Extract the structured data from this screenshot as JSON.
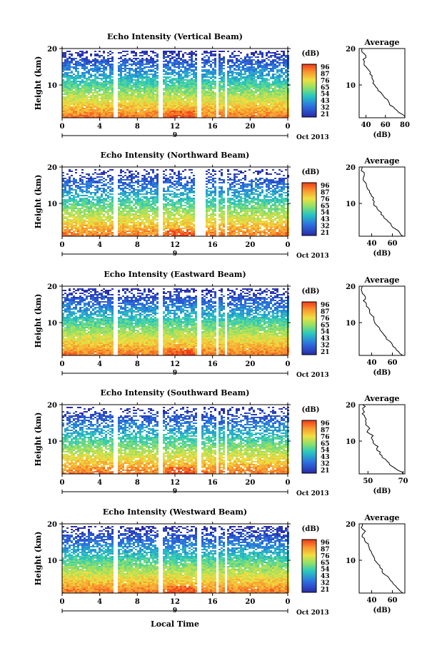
{
  "figure": {
    "xlabel": "Local Time",
    "month_label": "Oct 2013",
    "date_label": "9",
    "ylabel": "Height (km)",
    "colorbar_unit": "(dB)",
    "colorbar_ticks": [
      "96",
      "87",
      "76",
      "65",
      "54",
      "43",
      "32",
      "21"
    ],
    "avg_title": "Average",
    "avg_xlabel": "(dB)",
    "x_ticks": [
      "0",
      "4",
      "8",
      "12",
      "16",
      "20",
      "0"
    ],
    "y_ticks": [
      "20",
      "10"
    ],
    "colors": {
      "low": "#2a2aa8",
      "mid": "#28c8c0",
      "high": "#f03818"
    }
  },
  "chart_data": [
    {
      "type": "heatmap",
      "title": "Echo Intensity (Vertical Beam)",
      "x_range_hours": [
        0,
        24
      ],
      "y_range_km": [
        1,
        20
      ],
      "color_range_db": [
        21,
        96
      ],
      "gaps_hours": [
        [
          5.3,
          5.8
        ],
        [
          10.2,
          10.5
        ],
        [
          14.3,
          14.7
        ],
        [
          16.2,
          16.6
        ],
        [
          17.2,
          17.5
        ]
      ],
      "profile": {
        "title": "Average",
        "xlabel": "(dB)",
        "x_ticks": [
          40,
          60,
          80
        ],
        "xlim": [
          33,
          80
        ],
        "heights_km": [
          1,
          2,
          3,
          4,
          5,
          6,
          7,
          8,
          9,
          10,
          11,
          12,
          13,
          14,
          15,
          16,
          17,
          18,
          19,
          20
        ],
        "values_db": [
          80,
          77,
          72,
          68,
          64,
          62,
          58,
          55,
          52,
          49,
          48,
          46,
          44,
          43,
          40,
          38,
          37,
          40,
          36,
          36
        ]
      }
    },
    {
      "type": "heatmap",
      "title": "Echo Intensity (Northward Beam)",
      "x_range_hours": [
        0,
        24
      ],
      "y_range_km": [
        1,
        20
      ],
      "color_range_db": [
        21,
        96
      ],
      "gaps_hours": [
        [
          5.3,
          5.8
        ],
        [
          10.2,
          10.5
        ],
        [
          13.9,
          15.1
        ],
        [
          16.2,
          16.6
        ],
        [
          17.2,
          17.5
        ]
      ],
      "profile": {
        "title": "Average",
        "xlabel": "(dB)",
        "x_ticks": [
          40,
          60
        ],
        "xlim": [
          28,
          72
        ],
        "heights_km": [
          1,
          2,
          3,
          4,
          5,
          6,
          7,
          8,
          9,
          10,
          11,
          12,
          13,
          14,
          15,
          16,
          17,
          18,
          19,
          20
        ],
        "values_db": [
          70,
          67,
          63,
          59,
          56,
          52,
          49,
          47,
          45,
          42,
          41,
          40,
          38,
          36,
          35,
          33,
          32,
          33,
          30,
          31
        ]
      }
    },
    {
      "type": "heatmap",
      "title": "Echo Intensity (Eastward Beam)",
      "x_range_hours": [
        0,
        24
      ],
      "y_range_km": [
        1,
        20
      ],
      "color_range_db": [
        21,
        96
      ],
      "gaps_hours": [
        [
          5.3,
          5.8
        ],
        [
          10.2,
          10.5
        ],
        [
          14.3,
          14.7
        ],
        [
          16.2,
          16.6
        ],
        [
          17.2,
          17.5
        ]
      ],
      "profile": {
        "title": "Average",
        "xlabel": "(dB)",
        "x_ticks": [
          40,
          60
        ],
        "xlim": [
          28,
          72
        ],
        "heights_km": [
          1,
          2,
          3,
          4,
          5,
          6,
          7,
          8,
          9,
          10,
          11,
          12,
          13,
          14,
          15,
          16,
          17,
          18,
          19,
          20
        ],
        "values_db": [
          70,
          66,
          63,
          60,
          57,
          54,
          51,
          48,
          46,
          43,
          42,
          40,
          38,
          37,
          35,
          32,
          34,
          31,
          30,
          31
        ]
      }
    },
    {
      "type": "heatmap",
      "title": "Echo Intensity (Southward Beam)",
      "x_range_hours": [
        0,
        24
      ],
      "y_range_km": [
        1,
        20
      ],
      "color_range_db": [
        21,
        96
      ],
      "gaps_hours": [
        [
          5.3,
          5.8
        ],
        [
          10.2,
          10.5
        ],
        [
          14.3,
          14.7
        ],
        [
          16.2,
          16.6
        ],
        [
          17.2,
          17.5
        ]
      ],
      "profile": {
        "title": "Average",
        "xlabel": "(dB)",
        "x_ticks": [
          50,
          70
        ],
        "xlim": [
          45,
          71
        ],
        "heights_km": [
          1,
          2,
          3,
          4,
          5,
          6,
          7,
          8,
          9,
          10,
          11,
          12,
          13,
          14,
          15,
          16,
          17,
          18,
          19,
          20
        ],
        "values_db": [
          70,
          67,
          64,
          62,
          60,
          58,
          57,
          55,
          54,
          53,
          52,
          51,
          50,
          50,
          49,
          49,
          48,
          48,
          47,
          47
        ]
      }
    },
    {
      "type": "heatmap",
      "title": "Echo Intensity (Westward Beam)",
      "x_range_hours": [
        0,
        24
      ],
      "y_range_km": [
        1,
        20
      ],
      "color_range_db": [
        21,
        96
      ],
      "gaps_hours": [
        [
          5.3,
          5.8
        ],
        [
          10.2,
          10.5
        ],
        [
          14.3,
          14.7
        ],
        [
          16.2,
          16.6
        ],
        [
          17.2,
          17.5
        ]
      ],
      "profile": {
        "title": "Average",
        "xlabel": "(dB)",
        "x_ticks": [
          40,
          60
        ],
        "xlim": [
          28,
          72
        ],
        "heights_km": [
          1,
          2,
          3,
          4,
          5,
          6,
          7,
          8,
          9,
          10,
          11,
          12,
          13,
          14,
          15,
          16,
          17,
          18,
          19,
          20
        ],
        "values_db": [
          70,
          66,
          63,
          60,
          57,
          53,
          50,
          48,
          46,
          43,
          42,
          40,
          38,
          37,
          34,
          33,
          31,
          34,
          30,
          31
        ]
      }
    }
  ]
}
